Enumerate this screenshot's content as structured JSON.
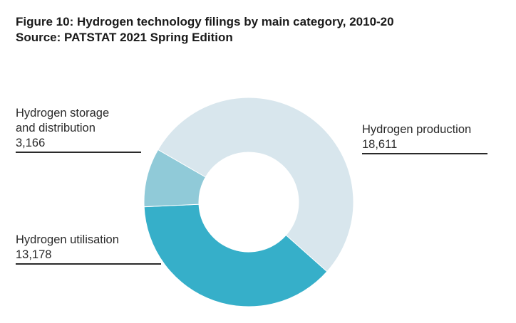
{
  "title": "Figure 10: Hydrogen technology filings by main category, 2010-20",
  "subtitle": "Source: PATSTAT 2021 Spring Edition",
  "chart_data": {
    "type": "pie",
    "variant": "donut",
    "title": "Figure 10: Hydrogen technology filings by main category, 2010-20",
    "subtitle": "Source: PATSTAT 2021 Spring Edition",
    "legend": "none",
    "slices": [
      {
        "label": "Hydrogen production",
        "line1": "Hydrogen production",
        "line2": "",
        "value": 18611,
        "display": "18,611",
        "color": "#d8e6ed"
      },
      {
        "label": "Hydrogen utilisation",
        "line1": "Hydrogen utilisation",
        "line2": "",
        "value": 13178,
        "display": "13,178",
        "color": "#36afc9"
      },
      {
        "label": "Hydrogen storage and distribution",
        "line1": "Hydrogen storage",
        "line2": "and distribution",
        "value": 3166,
        "display": "3,166",
        "color": "#90cad8"
      }
    ]
  }
}
